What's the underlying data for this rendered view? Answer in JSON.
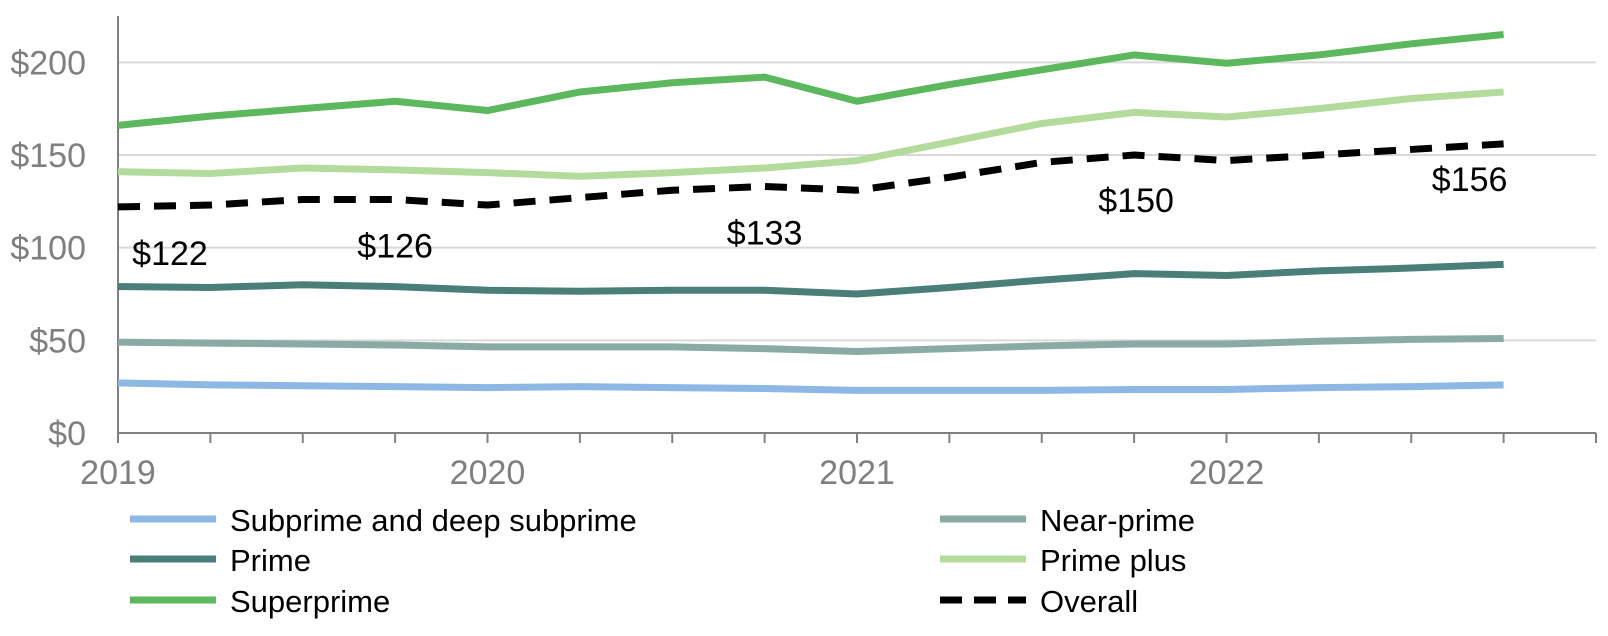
{
  "chart_data": {
    "type": "line",
    "title": "",
    "xlabel": "",
    "ylabel": "",
    "x": [
      "2019 Q1",
      "2019 Q2",
      "2019 Q3",
      "2019 Q4",
      "2020 Q1",
      "2020 Q2",
      "2020 Q3",
      "2020 Q4",
      "2021 Q1",
      "2021 Q2",
      "2021 Q3",
      "2021 Q4",
      "2022 Q1",
      "2022 Q2",
      "2022 Q3",
      "2022 Q4"
    ],
    "x_tick_labels": [
      "2019",
      "2020",
      "2021",
      "2022"
    ],
    "y_tick_labels": [
      "$0",
      "$50",
      "$100",
      "$150",
      "$200"
    ],
    "y_ticks": [
      0,
      50,
      100,
      150,
      200
    ],
    "ylim": [
      0,
      225
    ],
    "grid": "horizontal",
    "legend_position": "bottom",
    "series": [
      {
        "name": "Subprime and deep subprime",
        "color": "#8db8e6",
        "style": "solid",
        "values": [
          27,
          26,
          25.5,
          25,
          24.5,
          25,
          24.5,
          24,
          23,
          23,
          23,
          23.5,
          23.5,
          24.5,
          25,
          26
        ]
      },
      {
        "name": "Near-prime",
        "color": "#8aaba3",
        "style": "solid",
        "values": [
          49,
          48.5,
          48,
          47.5,
          46.5,
          46.5,
          46.5,
          45.5,
          44,
          45.5,
          47,
          48,
          48,
          49.5,
          50.5,
          51
        ]
      },
      {
        "name": "Prime",
        "color": "#4a7f79",
        "style": "solid",
        "values": [
          79,
          78.5,
          80,
          79,
          77,
          76.5,
          77,
          77,
          75,
          78.5,
          82.5,
          86,
          85,
          87.5,
          89,
          91
        ]
      },
      {
        "name": "Prime plus",
        "color": "#b3dc9c",
        "style": "solid",
        "values": [
          141,
          140,
          143,
          142,
          140.5,
          138.5,
          140.5,
          143,
          147,
          157,
          167,
          173,
          170.5,
          175,
          180.5,
          184
        ]
      },
      {
        "name": "Superprime",
        "color": "#5cb85c",
        "style": "solid",
        "values": [
          166,
          171,
          175,
          179,
          174,
          184,
          189,
          192,
          179,
          188,
          196,
          204,
          199.5,
          204,
          210,
          215
        ]
      },
      {
        "name": "Overall",
        "color": "#000000",
        "style": "dashed",
        "values": [
          122,
          123,
          126,
          126,
          123,
          127,
          131,
          133,
          131,
          138,
          146,
          150,
          147,
          150,
          153,
          156
        ]
      }
    ],
    "annotations": [
      {
        "text": "$122",
        "x_index": 0,
        "value": 122
      },
      {
        "text": "$126",
        "x_index": 3,
        "value": 126
      },
      {
        "text": "$133",
        "x_index": 7,
        "value": 133
      },
      {
        "text": "$150",
        "x_index": 11,
        "value": 150
      },
      {
        "text": "$156",
        "x_index": 15,
        "value": 156
      }
    ]
  }
}
